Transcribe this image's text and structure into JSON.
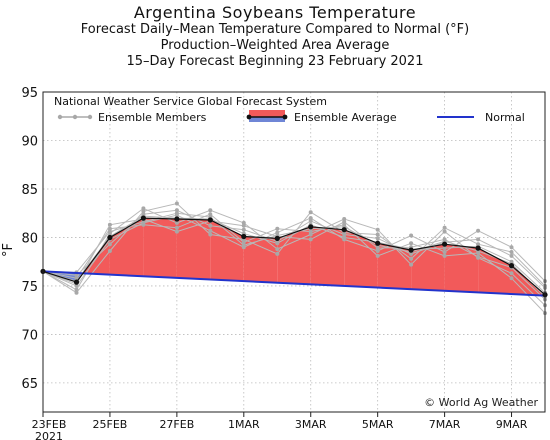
{
  "chart_data": {
    "type": "line",
    "title": "Argentina Soybeans Temperature",
    "subtitle_lines": [
      "Forecast Daily–Mean Temperature Compared to Normal (°F)",
      "Production–Weighted Area Average",
      "15–Day Forecast Beginning 23 February 2021"
    ],
    "ylabel": "°F",
    "ylim": [
      62,
      95
    ],
    "yticks": [
      65,
      70,
      75,
      80,
      85,
      90,
      95
    ],
    "xlim": [
      0,
      15
    ],
    "xticks": [
      {
        "x": 0,
        "label": "23FEB",
        "sublabel": "2021"
      },
      {
        "x": 2,
        "label": "25FEB"
      },
      {
        "x": 4,
        "label": "27FEB"
      },
      {
        "x": 6,
        "label": "1MAR"
      },
      {
        "x": 8,
        "label": "3MAR"
      },
      {
        "x": 10,
        "label": "5MAR"
      },
      {
        "x": 12,
        "label": "7MAR"
      },
      {
        "x": 14,
        "label": "9MAR"
      }
    ],
    "source_label": "National Weather Service Global Forecast System",
    "legend": {
      "members": "Ensemble Members",
      "average": "Ensemble Average",
      "normal": "Normal"
    },
    "series": [
      {
        "name": "Ensemble Average",
        "x": [
          0,
          1,
          2,
          3,
          4,
          5,
          6,
          7,
          8,
          9,
          10,
          11,
          12,
          13,
          14,
          15
        ],
        "values": [
          76.5,
          75.4,
          80.0,
          82.0,
          81.9,
          81.8,
          80.1,
          79.9,
          81.1,
          80.8,
          79.4,
          78.7,
          79.3,
          78.9,
          77.1,
          74.1
        ]
      },
      {
        "name": "Normal",
        "x": [
          0,
          15
        ],
        "values": [
          76.5,
          74.0
        ]
      }
    ],
    "ensemble_members": [
      [
        76.5,
        75.0,
        79.8,
        81.5,
        82.3,
        80.7,
        79.0,
        80.5,
        82.0,
        79.8,
        78.6,
        80.2,
        78.5,
        80.7,
        79.0,
        75.5
      ],
      [
        76.5,
        74.6,
        80.4,
        83.0,
        81.5,
        82.8,
        81.5,
        78.8,
        80.3,
        81.9,
        80.8,
        77.2,
        80.6,
        77.9,
        76.3,
        73.0
      ],
      [
        76.5,
        76.1,
        79.3,
        82.4,
        82.8,
        81.2,
        80.8,
        79.6,
        81.7,
        80.3,
        79.9,
        78.3,
        79.5,
        79.8,
        78.1,
        74.8
      ],
      [
        76.5,
        75.8,
        80.9,
        81.3,
        81.0,
        82.4,
        79.5,
        80.9,
        80.6,
        81.3,
        78.1,
        79.4,
        78.1,
        78.4,
        75.8,
        72.2
      ],
      [
        76.5,
        74.3,
        78.6,
        82.7,
        83.5,
        80.3,
        79.8,
        78.3,
        82.6,
        80.5,
        80.3,
        77.8,
        81.0,
        79.3,
        78.5,
        75.0
      ],
      [
        76.5,
        75.2,
        81.3,
        81.9,
        80.6,
        81.7,
        81.2,
        80.1,
        79.8,
        81.6,
        78.9,
        79.0,
        79.8,
        78.0,
        76.9,
        73.6
      ],
      [
        76.5,
        75.5,
        80.1,
        82.2,
        82.0,
        81.9,
        80.4,
        79.4,
        81.3,
        80.0,
        79.5,
        78.8,
        78.9,
        79.1,
        77.5,
        74.3
      ],
      [
        76.5,
        76.4,
        80.6,
        81.6,
        82.5,
        82.1,
        79.2,
        80.2,
        80.9,
        81.1,
        79.2,
        78.5,
        79.6,
        78.6,
        77.3,
        73.9
      ]
    ],
    "grid": true,
    "legend_position": "top-left"
  },
  "watermark": "© World Ag Weather",
  "colors": {
    "above_normal_fill": "#f25a5a",
    "below_normal_fill": "#6f86d6",
    "member_line": "#b8b8b8",
    "member_point": "#a8a8a8",
    "average_line": "#111111",
    "normal_line": "#2233cc",
    "grid": "#bbbbbb"
  }
}
